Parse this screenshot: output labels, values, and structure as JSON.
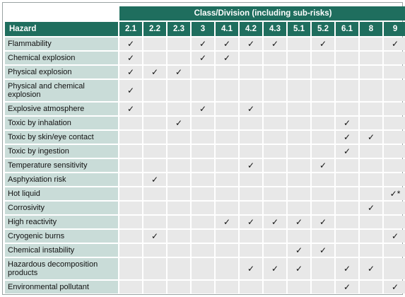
{
  "table": {
    "group_header": "Class/Division (including sub-risks)",
    "hazard_header": "Hazard",
    "classes": [
      "2.1",
      "2.2",
      "2.3",
      "3",
      "4.1",
      "4.2",
      "4.3",
      "5.1",
      "5.2",
      "6.1",
      "8",
      "9"
    ],
    "rows": [
      {
        "hazard": "Flammability",
        "tall": false,
        "marks": [
          "✓",
          "",
          "",
          "✓",
          "✓",
          "✓",
          "✓",
          "",
          "✓",
          "",
          "",
          "✓"
        ]
      },
      {
        "hazard": "Chemical explosion",
        "tall": false,
        "marks": [
          "✓",
          "",
          "",
          "✓",
          "✓",
          "",
          "",
          "",
          "",
          "",
          "",
          ""
        ]
      },
      {
        "hazard": "Physical explosion",
        "tall": false,
        "marks": [
          "✓",
          "✓",
          "✓",
          "",
          "",
          "",
          "",
          "",
          "",
          "",
          "",
          ""
        ]
      },
      {
        "hazard": "Physical and chemical explosion",
        "tall": true,
        "marks": [
          "✓",
          "",
          "",
          "",
          "",
          "",
          "",
          "",
          "",
          "",
          "",
          ""
        ]
      },
      {
        "hazard": "Explosive atmosphere",
        "tall": false,
        "marks": [
          "✓",
          "",
          "",
          "✓",
          "",
          "✓",
          "",
          "",
          "",
          "",
          "",
          ""
        ]
      },
      {
        "hazard": "Toxic by inhalation",
        "tall": false,
        "marks": [
          "",
          "",
          "✓",
          "",
          "",
          "",
          "",
          "",
          "",
          "✓",
          "",
          ""
        ]
      },
      {
        "hazard": "Toxic by skin/eye contact",
        "tall": false,
        "marks": [
          "",
          "",
          "",
          "",
          "",
          "",
          "",
          "",
          "",
          "✓",
          "✓",
          ""
        ]
      },
      {
        "hazard": "Toxic by ingestion",
        "tall": false,
        "marks": [
          "",
          "",
          "",
          "",
          "",
          "",
          "",
          "",
          "",
          "✓",
          "",
          ""
        ]
      },
      {
        "hazard": "Temperature sensitivity",
        "tall": false,
        "marks": [
          "",
          "",
          "",
          "",
          "",
          "✓",
          "",
          "",
          "✓",
          "",
          "",
          ""
        ]
      },
      {
        "hazard": "Asphyxiation risk",
        "tall": false,
        "marks": [
          "",
          "✓",
          "",
          "",
          "",
          "",
          "",
          "",
          "",
          "",
          "",
          ""
        ]
      },
      {
        "hazard": "Hot liquid",
        "tall": false,
        "marks": [
          "",
          "",
          "",
          "",
          "",
          "",
          "",
          "",
          "",
          "",
          "",
          "✓*"
        ]
      },
      {
        "hazard": "Corrosivity",
        "tall": false,
        "marks": [
          "",
          "",
          "",
          "",
          "",
          "",
          "",
          "",
          "",
          "",
          "✓",
          ""
        ]
      },
      {
        "hazard": "High reactivity",
        "tall": false,
        "marks": [
          "",
          "",
          "",
          "",
          "✓",
          "✓",
          "✓",
          "✓",
          "✓",
          "",
          "",
          ""
        ]
      },
      {
        "hazard": "Cryogenic burns",
        "tall": false,
        "marks": [
          "",
          "✓",
          "",
          "",
          "",
          "",
          "",
          "",
          "",
          "",
          "",
          "✓"
        ]
      },
      {
        "hazard": "Chemical instability",
        "tall": false,
        "marks": [
          "",
          "",
          "",
          "",
          "",
          "",
          "",
          "✓",
          "✓",
          "",
          "",
          ""
        ]
      },
      {
        "hazard": "Hazardous decomposition products",
        "tall": true,
        "marks": [
          "",
          "",
          "",
          "",
          "",
          "✓",
          "✓",
          "✓",
          "",
          "✓",
          "✓",
          ""
        ]
      },
      {
        "hazard": "Environmental pollutant",
        "tall": false,
        "marks": [
          "",
          "",
          "",
          "",
          "",
          "",
          "",
          "",
          "",
          "✓",
          "",
          "✓"
        ]
      }
    ]
  }
}
